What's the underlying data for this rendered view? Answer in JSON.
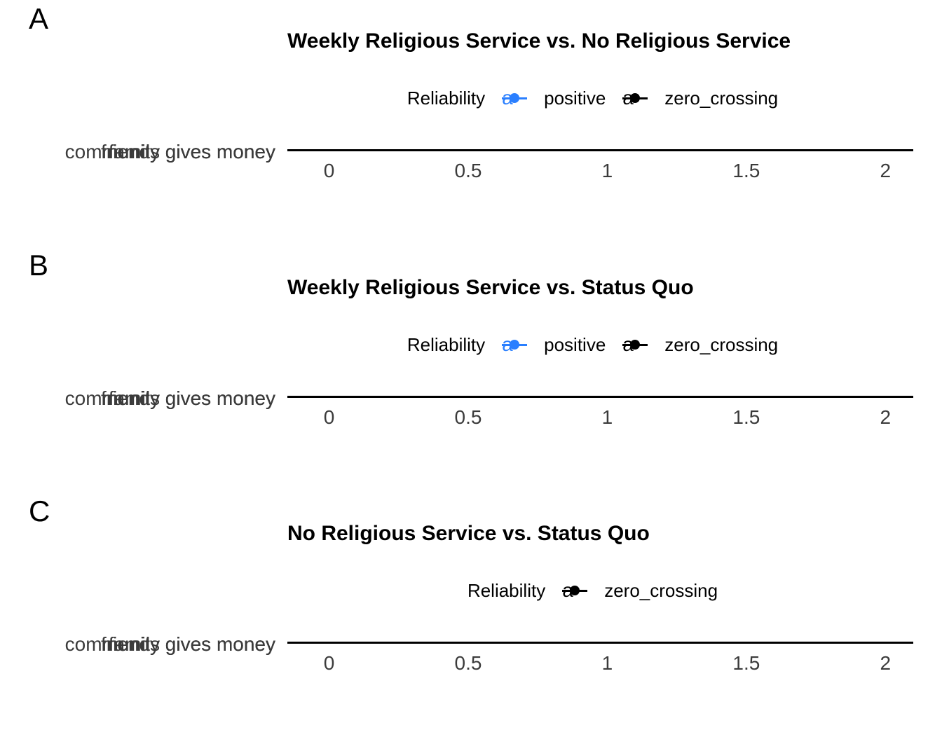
{
  "chart_data": [
    {
      "type": "scatter",
      "panel_label": "A",
      "title": "Weekly Religious Service vs. No Religious Service",
      "legend": {
        "title": "Reliability",
        "position": "top",
        "entries": [
          {
            "name": "positive",
            "color": "#2a7fff"
          },
          {
            "name": "zero_crossing",
            "color": "#000000"
          }
        ]
      },
      "y_categories": [
        "community gives money",
        "family gives money",
        "friends gives money"
      ],
      "x_ticks": [
        "0",
        "0.5",
        "1",
        "1.5",
        "2"
      ],
      "xlim": [
        -0.15,
        2.1
      ],
      "xlabel": "",
      "ylabel": "",
      "grid": false
    },
    {
      "type": "scatter",
      "panel_label": "B",
      "title": "Weekly Religious Service vs. Status Quo",
      "legend": {
        "title": "Reliability",
        "position": "top",
        "entries": [
          {
            "name": "positive",
            "color": "#2a7fff"
          },
          {
            "name": "zero_crossing",
            "color": "#000000"
          }
        ]
      },
      "y_categories": [
        "community gives money",
        "family gives money",
        "friends gives money"
      ],
      "x_ticks": [
        "0",
        "0.5",
        "1",
        "1.5",
        "2"
      ],
      "xlim": [
        -0.15,
        2.1
      ],
      "xlabel": "",
      "ylabel": "",
      "grid": false
    },
    {
      "type": "scatter",
      "panel_label": "C",
      "title": "No Religious Service vs. Status Quo",
      "legend": {
        "title": "Reliability",
        "position": "top",
        "entries": [
          {
            "name": "zero_crossing",
            "color": "#000000"
          }
        ]
      },
      "y_categories": [
        "community gives money",
        "family gives money",
        "friends gives money"
      ],
      "x_ticks": [
        "0",
        "0.5",
        "1",
        "1.5",
        "2"
      ],
      "xlim": [
        -0.15,
        2.1
      ],
      "xlabel": "",
      "ylabel": "",
      "grid": false
    }
  ]
}
